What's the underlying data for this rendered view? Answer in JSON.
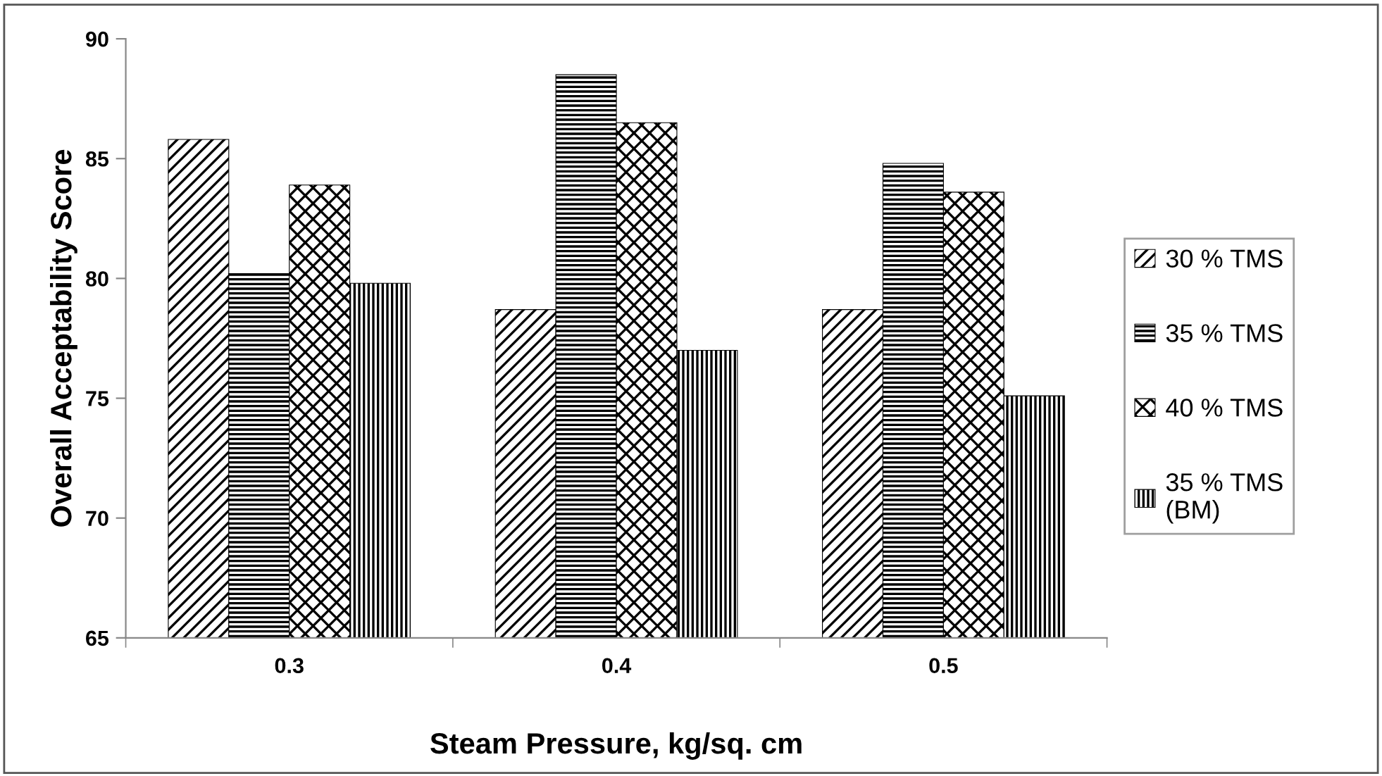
{
  "chart_data": {
    "type": "bar",
    "xlabel": "Steam Pressure, kg/sq. cm",
    "ylabel": "Overall Acceptability Score",
    "categories": [
      "0.3",
      "0.4",
      "0.5"
    ],
    "series": [
      {
        "name": "30 % TMS",
        "color": "#000000",
        "values": [
          85.8,
          78.7,
          78.7
        ]
      },
      {
        "name": "35 % TMS",
        "color": "#000000",
        "values": [
          80.2,
          88.5,
          84.8
        ]
      },
      {
        "name": "40 % TMS",
        "color": "#000000",
        "values": [
          83.9,
          86.5,
          83.6
        ]
      },
      {
        "name": "35 % TMS\n(BM)",
        "color": "#000000",
        "values": [
          79.8,
          77.0,
          75.1
        ]
      }
    ],
    "ylim": [
      65,
      90
    ],
    "yticks": [
      65,
      70,
      75,
      80,
      85,
      90
    ],
    "grid": false,
    "legend": "right"
  }
}
